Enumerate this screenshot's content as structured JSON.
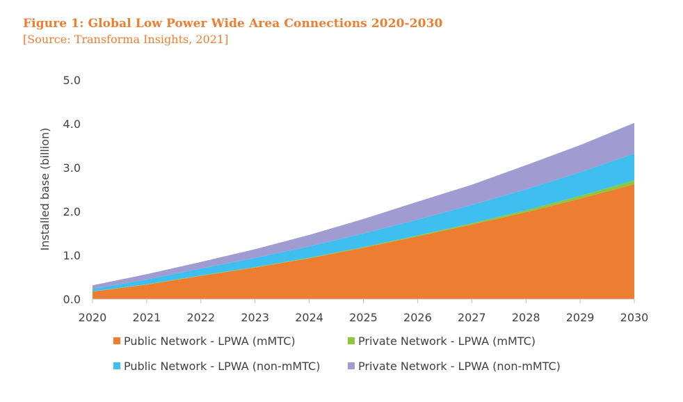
{
  "header": {
    "title": "Figure 1: Global Low Power Wide Area Connections 2020-2030",
    "subtitle": "[Source: Transforma Insights, 2021]"
  },
  "chart_data": {
    "type": "area",
    "stacked": true,
    "x": [
      2020,
      2021,
      2022,
      2023,
      2024,
      2025,
      2026,
      2027,
      2028,
      2029,
      2030
    ],
    "ylabel": "Installed base (billion)",
    "ylim": [
      0,
      5.0
    ],
    "yticks": [
      "0.0",
      "1.0",
      "2.0",
      "3.0",
      "4.0",
      "5.0"
    ],
    "xticks": [
      "2020",
      "2021",
      "2022",
      "2023",
      "2024",
      "2025",
      "2026",
      "2027",
      "2028",
      "2029",
      "2030"
    ],
    "grid": false,
    "legend_position": "bottom",
    "series": [
      {
        "name": "Public Network - LPWA (mMTC)",
        "color": "#ed7d31",
        "values": [
          0.17,
          0.33,
          0.53,
          0.72,
          0.93,
          1.17,
          1.43,
          1.7,
          1.98,
          2.29,
          2.62
        ]
      },
      {
        "name": "Private Network - LPWA (mMTC)",
        "color": "#8dc63f",
        "values": [
          0.005,
          0.006,
          0.008,
          0.01,
          0.013,
          0.017,
          0.022,
          0.03,
          0.045,
          0.065,
          0.09
        ]
      },
      {
        "name": "Public Network - LPWA (non-mMTC)",
        "color": "#3fbfef",
        "values": [
          0.06,
          0.11,
          0.16,
          0.21,
          0.26,
          0.31,
          0.36,
          0.42,
          0.48,
          0.54,
          0.61
        ]
      },
      {
        "name": "Private Network - LPWA (non-mMTC)",
        "color": "#a09bd0",
        "values": [
          0.08,
          0.12,
          0.15,
          0.2,
          0.26,
          0.33,
          0.41,
          0.46,
          0.55,
          0.62,
          0.7
        ]
      }
    ]
  }
}
